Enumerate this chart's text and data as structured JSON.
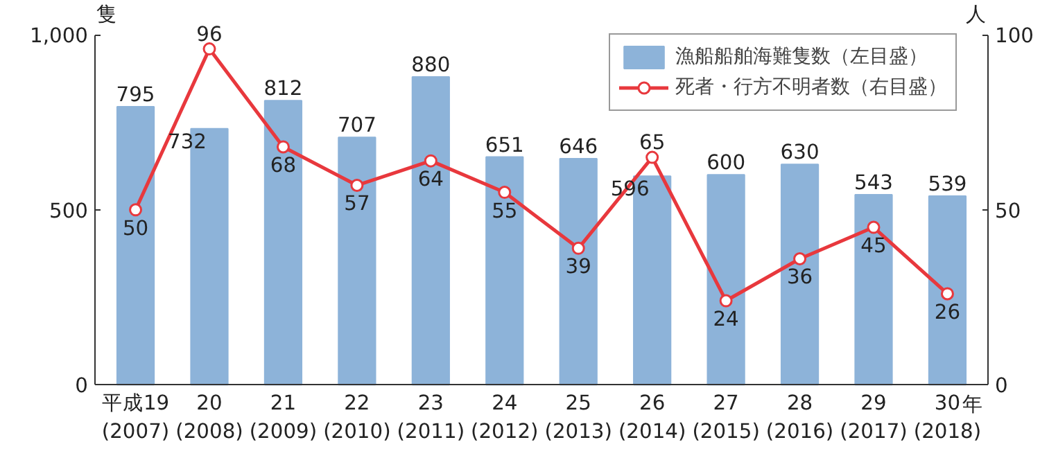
{
  "chart_data": {
    "type": "bar",
    "categories": [
      "平成19\n(2007)",
      "20\n(2008)",
      "21\n(2009)",
      "22\n(2010)",
      "23\n(2011)",
      "24\n(2012)",
      "25\n(2013)",
      "26\n(2014)",
      "27\n(2015)",
      "28\n(2016)",
      "29\n(2017)",
      "30\n(2018)"
    ],
    "xlabel": "年",
    "ylabel": "隻",
    "y2label": "人",
    "series": [
      {
        "name": "漁船船舶海難隻数（左目盛）",
        "color": "#8db3d9",
        "values": [
          795,
          732,
          812,
          707,
          880,
          651,
          646,
          596,
          600,
          630,
          543,
          539
        ]
      },
      {
        "name": "死者・行方不明者数（右目盛）",
        "type": "line",
        "axis": "y2",
        "color": "#e8383d",
        "marker": "circle",
        "values": [
          50,
          96,
          68,
          57,
          64,
          55,
          39,
          65,
          24,
          36,
          45,
          26
        ]
      }
    ],
    "ylim": [
      0,
      1000
    ],
    "yticks": [
      0,
      500,
      {
        "value": 1000,
        "label": "1,000"
      }
    ],
    "y2lim": [
      0,
      100
    ],
    "y2ticks": [
      0,
      50,
      100
    ],
    "data_labels": true,
    "legend": "top right",
    "grid": false
  }
}
